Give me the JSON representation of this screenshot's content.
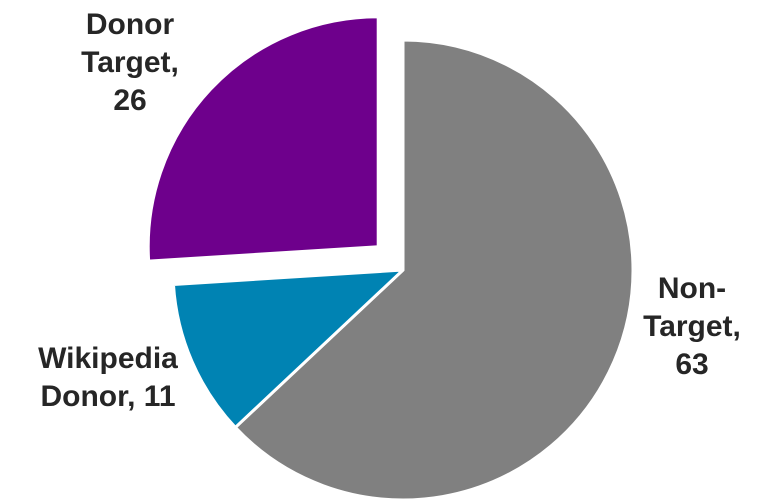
{
  "chart_data": {
    "type": "pie",
    "title": "",
    "slices": [
      {
        "label_lines": [
          "Non-",
          "Target,",
          "63"
        ],
        "name": "Non-Target",
        "value": 63,
        "color": "#808080",
        "exploded": false
      },
      {
        "label_lines": [
          "Wikipedia",
          "Donor, 11"
        ],
        "name": "Wikipedia Donor",
        "value": 11,
        "color": "#0083B3",
        "exploded": false
      },
      {
        "label_lines": [
          "Donor",
          "Target,",
          "26"
        ],
        "name": "Donor Target",
        "value": 26,
        "color": "#6E008C",
        "exploded": true
      }
    ]
  }
}
